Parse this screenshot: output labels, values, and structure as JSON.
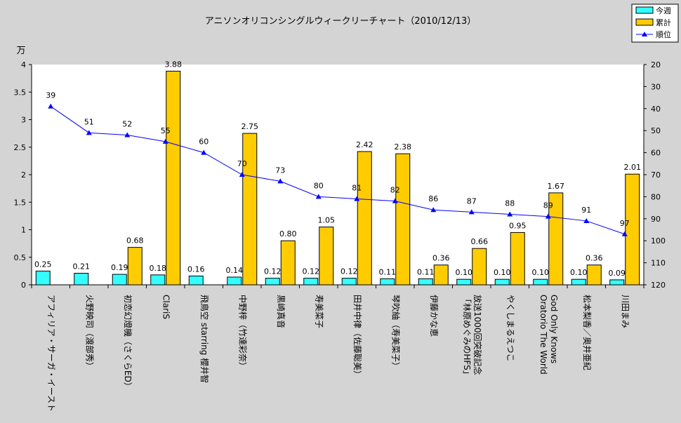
{
  "chart_data": {
    "type": "bar",
    "title": "アニソンオリコンシングルウィークリーチャート（2010/12/13）",
    "ylabel": "万",
    "ylim": [
      0,
      4
    ],
    "yticks": [
      "0",
      "0.5",
      "1",
      "1.5",
      "2",
      "2.5",
      "3",
      "3.5",
      "4"
    ],
    "y2lim": [
      20,
      120
    ],
    "y2reversed": true,
    "y2ticks": [
      "20",
      "30",
      "40",
      "50",
      "60",
      "70",
      "80",
      "90",
      "100",
      "110",
      "120"
    ],
    "legend_position": "top-right",
    "grid": false,
    "categories": [
      [
        "アフィリア・サーガ・イースト"
      ],
      [
        "火野映司（渡部秀）"
      ],
      [
        "初恋幻燈機（さくらED）"
      ],
      [
        "ClariS"
      ],
      [
        "飛鳥空 starring 櫻井智"
      ],
      [
        "中野梓（竹達彩奈）"
      ],
      [
        "黒崎真音"
      ],
      [
        "寿美菜子"
      ],
      [
        "田井中律（佐藤聡美）"
      ],
      [
        "琴吹紬（寿美菜子）"
      ],
      [
        "伊藤かな恵"
      ],
      [
        "「林原めぐみのHFS」",
        "放送1000回突破記念"
      ],
      [
        "やくしまるえつこ"
      ],
      [
        "Oratorio The World",
        "God Only Knows"
      ],
      [
        "松本梨香／奥井亜紀"
      ],
      [
        "川田まみ"
      ]
    ],
    "series": [
      {
        "name": "今週",
        "kind": "bar",
        "color": "#33FFFF",
        "values": [
          0.25,
          0.21,
          0.19,
          0.18,
          0.16,
          0.14,
          0.12,
          0.12,
          0.12,
          0.11,
          0.11,
          0.1,
          0.1,
          0.1,
          0.1,
          0.09
        ],
        "labels": [
          "0.25",
          "0.21",
          "0.19",
          "0.18",
          "0.16",
          "0.14",
          "0.12",
          "0.12",
          "0.12",
          "0.11",
          "0.11",
          "0.10",
          "0.10",
          "0.10",
          "0.10",
          "0.09"
        ]
      },
      {
        "name": "累計",
        "kind": "bar",
        "color": "#FFCC00",
        "values": [
          null,
          null,
          0.68,
          3.88,
          null,
          2.75,
          0.8,
          1.05,
          2.42,
          2.38,
          0.36,
          0.66,
          0.95,
          1.67,
          0.36,
          2.01
        ],
        "labels": [
          null,
          null,
          "0.68",
          "3.88",
          null,
          "2.75",
          "0.80",
          "1.05",
          "2.42",
          "2.38",
          "0.36",
          "0.66",
          "0.95",
          "1.67",
          "0.36",
          "2.01"
        ]
      },
      {
        "name": "順位",
        "kind": "line",
        "axis": "right",
        "color": "#0000FF",
        "values": [
          39,
          51,
          52,
          55,
          60,
          70,
          73,
          80,
          81,
          82,
          86,
          87,
          88,
          89,
          91,
          97
        ],
        "labels": [
          "39",
          "51",
          "52",
          "55",
          "60",
          "70",
          "73",
          "80",
          "81",
          "82",
          "86",
          "87",
          "88",
          "89",
          "91",
          "97"
        ]
      }
    ]
  }
}
